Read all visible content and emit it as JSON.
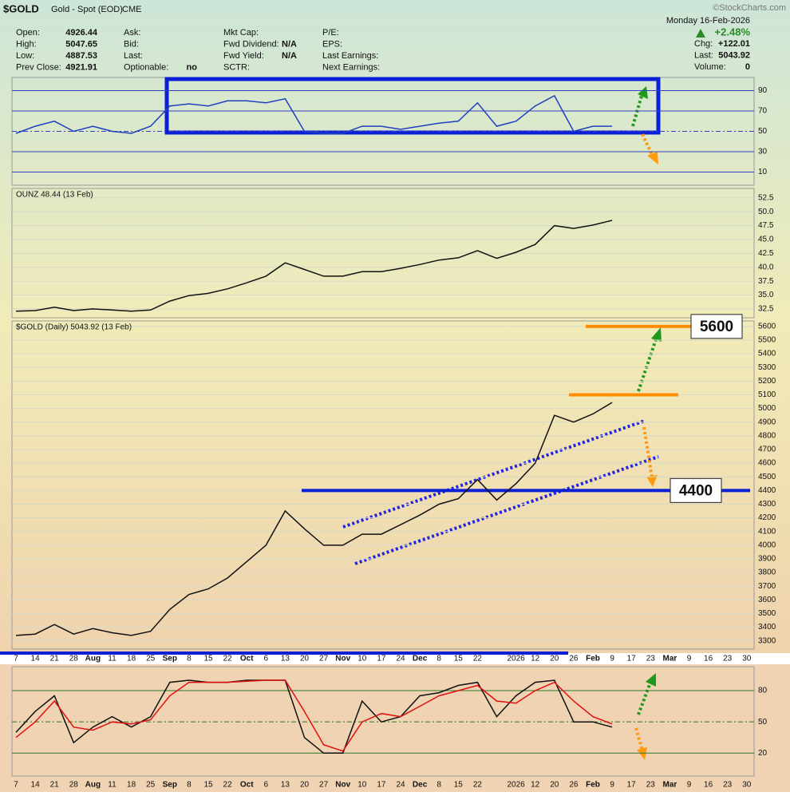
{
  "header": {
    "symbol": "$GOLD",
    "name": "Gold - Spot (EOD)",
    "exchange": "CME",
    "source": "©StockCharts.com",
    "date": "Monday 16-Feb-2026",
    "rows": [
      [
        "Open:",
        "4926.44",
        "Ask:",
        "",
        "Mkt Cap:",
        "",
        "P/E:",
        ""
      ],
      [
        "High:",
        "5047.65",
        "Bid:",
        "",
        "Fwd Dividend:",
        "N/A",
        "EPS:",
        ""
      ],
      [
        "Low:",
        "4887.53",
        "Last:",
        "",
        "Fwd Yield:",
        "N/A",
        "Last Earnings:",
        ""
      ],
      [
        "Prev Close:",
        "4921.91",
        "Optionable:",
        "no",
        "SCTR:",
        "",
        "Next Earnings:",
        ""
      ]
    ],
    "change_pct": "+2.48%",
    "right": [
      [
        "Chg:",
        "+122.01"
      ],
      [
        "Last:",
        "5043.92"
      ],
      [
        "Volume:",
        "0"
      ]
    ]
  },
  "chart_data": [
    {
      "type": "line",
      "color": "#1f3fbf",
      "ylim": [
        -3,
        103
      ],
      "yticks": [
        10,
        30,
        50,
        70,
        90
      ],
      "values": [
        48,
        55,
        60,
        50,
        55,
        50,
        48,
        55,
        75,
        77,
        75,
        80,
        80,
        78,
        82,
        50,
        48,
        48,
        55,
        55,
        52,
        55,
        58,
        60,
        78,
        55,
        60,
        75,
        85,
        50,
        55,
        55,
        null,
        null,
        null,
        null,
        null,
        null,
        null
      ]
    },
    {
      "type": "line",
      "title": "OUNZ 48.44 (13 Feb)",
      "color": "#111111",
      "ylim": [
        30.9,
        54.2
      ],
      "yticks": [
        32.5,
        {
          "value": 35,
          "label": "35.0"
        },
        37.5,
        {
          "value": 40,
          "label": "40.0"
        },
        42.5,
        {
          "value": 45,
          "label": "45.0"
        },
        47.5,
        {
          "value": 50,
          "label": "50.0"
        },
        52.5
      ],
      "values": [
        32.1,
        32.2,
        32.8,
        32.2,
        32.5,
        32.3,
        32.1,
        32.3,
        33.9,
        34.9,
        35.3,
        36.1,
        37.2,
        38.4,
        40.8,
        39.6,
        38.4,
        38.4,
        39.2,
        39.2,
        39.8,
        40.5,
        41.3,
        41.7,
        43.0,
        41.6,
        42.7,
        44.1,
        47.5,
        47.0,
        47.6,
        48.44,
        null,
        null,
        null,
        null,
        null,
        null,
        null
      ]
    },
    {
      "type": "line",
      "title": "$GOLD (Daily) 5043.92 (13 Feb)",
      "color": "#111111",
      "ylim": [
        3240,
        5640
      ],
      "yticks": [
        3300,
        3400,
        3500,
        3600,
        3700,
        3800,
        3900,
        4000,
        4100,
        4200,
        4300,
        4400,
        4500,
        4600,
        4700,
        4800,
        4900,
        5000,
        5100,
        5200,
        5300,
        5400,
        5500,
        5600
      ],
      "categories": [
        "7",
        "14",
        "21",
        "28",
        "Aug",
        "11",
        "18",
        "25",
        "Sep",
        "8",
        "15",
        "22",
        "Oct",
        "6",
        "13",
        "20",
        "27",
        "Nov",
        "10",
        "17",
        "24",
        "Dec",
        "8",
        "15",
        "22",
        null,
        "2026",
        "12",
        "20",
        "26",
        "Feb",
        "9",
        "17",
        "23",
        "Mar",
        "9",
        "16",
        "23",
        "30"
      ],
      "values": [
        3340,
        3350,
        3420,
        3350,
        3390,
        3360,
        3340,
        3370,
        3530,
        3640,
        3680,
        3760,
        3880,
        4000,
        4250,
        4120,
        4000,
        4000,
        4080,
        4080,
        4150,
        4220,
        4300,
        4340,
        4480,
        4330,
        4450,
        4600,
        4950,
        4900,
        4960,
        5043.92,
        null,
        null,
        null,
        null,
        null,
        null,
        null
      ],
      "levels": [
        {
          "value": 5600,
          "label": "5600",
          "color": "#ff8c00"
        },
        {
          "value": 5100,
          "color": "#ff8c00"
        },
        {
          "value": 4400,
          "label": "4400",
          "color": "#0a1fd6"
        }
      ]
    },
    {
      "type": "line",
      "ylim": [
        -2,
        103
      ],
      "yticks": [
        20,
        50,
        80
      ],
      "categories": [
        "7",
        "14",
        "21",
        "28",
        "Aug",
        "11",
        "18",
        "25",
        "Sep",
        "8",
        "15",
        "22",
        "Oct",
        "6",
        "13",
        "20",
        "27",
        "Nov",
        "10",
        "17",
        "24",
        "Dec",
        "8",
        "15",
        "22",
        null,
        "2026",
        "12",
        "20",
        "26",
        "Feb",
        "9",
        "17",
        "23",
        "Mar",
        "9",
        "16",
        "23",
        "30"
      ],
      "series": [
        {
          "color": "#111111",
          "values": [
            40,
            60,
            75,
            30,
            45,
            55,
            45,
            55,
            88,
            90,
            88,
            88,
            90,
            90,
            90,
            35,
            20,
            20,
            70,
            50,
            55,
            75,
            78,
            85,
            88,
            55,
            75,
            88,
            90,
            50,
            50,
            45,
            null,
            null,
            null,
            null,
            null,
            null,
            null
          ]
        },
        {
          "color": "#e01010",
          "values": [
            35,
            50,
            70,
            45,
            42,
            50,
            48,
            52,
            75,
            88,
            88,
            88,
            89,
            90,
            90,
            60,
            28,
            22,
            50,
            58,
            55,
            65,
            75,
            80,
            85,
            70,
            68,
            80,
            88,
            70,
            55,
            48,
            null,
            null,
            null,
            null,
            null,
            null,
            null
          ]
        }
      ]
    }
  ]
}
